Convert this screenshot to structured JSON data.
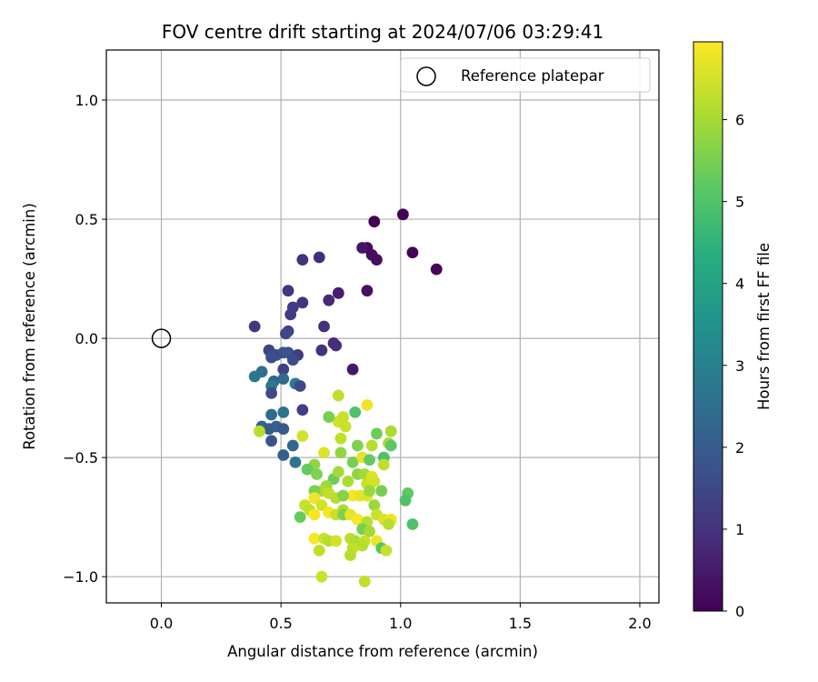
{
  "chart_data": {
    "type": "scatter",
    "title": "FOV centre drift starting at 2024/07/06 03:29:41",
    "xlabel": "Angular distance from reference (arcmin)",
    "ylabel": "Rotation from reference (arcmin)",
    "xlim": [
      -0.23,
      2.08
    ],
    "ylim": [
      -1.11,
      1.21
    ],
    "xticks": [
      0.0,
      0.5,
      1.0,
      1.5,
      2.0
    ],
    "xtick_labels": [
      "0.0",
      "0.5",
      "1.0",
      "1.5",
      "2.0"
    ],
    "yticks": [
      -1.0,
      -0.5,
      0.0,
      0.5,
      1.0
    ],
    "ytick_labels": [
      "−1.0",
      "−0.5",
      "0.0",
      "0.5",
      "1.0"
    ],
    "grid": true,
    "legend": {
      "placement": "top-right",
      "entries": [
        "Reference platepar"
      ]
    },
    "reference_point": {
      "name": "Reference platepar",
      "x": 0.0,
      "y": 0.0,
      "marker": "open-circle",
      "color": "#000000"
    },
    "colormap": "viridis",
    "colorbar": {
      "label": "Hours from first FF file",
      "min": 0,
      "max": 6.95,
      "ticks": [
        0,
        1,
        2,
        3,
        4,
        5,
        6
      ],
      "tick_labels": [
        "0",
        "1",
        "2",
        "3",
        "4",
        "5",
        "6"
      ]
    },
    "series": [
      {
        "points": [
          [
            0.89,
            0.49,
            0.0
          ],
          [
            1.01,
            0.52,
            0.02
          ],
          [
            1.05,
            0.36,
            0.05
          ],
          [
            1.15,
            0.29,
            0.1
          ],
          [
            0.86,
            0.38,
            0.15
          ],
          [
            0.88,
            0.35,
            0.2
          ],
          [
            0.9,
            0.33,
            0.25
          ],
          [
            0.86,
            0.2,
            0.3
          ],
          [
            0.84,
            0.38,
            0.4
          ],
          [
            0.74,
            0.19,
            0.5
          ],
          [
            0.8,
            -0.13,
            0.45
          ],
          [
            0.66,
            0.34,
            0.9
          ],
          [
            0.59,
            0.33,
            1.0
          ],
          [
            0.7,
            0.16,
            0.8
          ],
          [
            0.53,
            0.2,
            1.1
          ],
          [
            0.59,
            0.15,
            1.0
          ],
          [
            0.55,
            0.13,
            1.2
          ],
          [
            0.54,
            0.1,
            1.25
          ],
          [
            0.39,
            0.05,
            1.1
          ],
          [
            0.68,
            0.05,
            0.95
          ],
          [
            0.53,
            0.03,
            1.3
          ],
          [
            0.52,
            0.02,
            1.5
          ],
          [
            0.72,
            -0.02,
            0.85
          ],
          [
            0.73,
            -0.03,
            0.9
          ],
          [
            0.67,
            -0.05,
            1.0
          ],
          [
            0.45,
            -0.05,
            1.4
          ],
          [
            0.48,
            -0.07,
            1.6
          ],
          [
            0.51,
            -0.06,
            1.7
          ],
          [
            0.53,
            -0.06,
            1.8
          ],
          [
            0.57,
            -0.07,
            1.2
          ],
          [
            0.46,
            -0.08,
            1.7
          ],
          [
            0.51,
            -0.13,
            1.35
          ],
          [
            0.55,
            -0.09,
            1.6
          ],
          [
            0.47,
            -0.18,
            2.3
          ],
          [
            0.42,
            -0.14,
            2.6
          ],
          [
            0.39,
            -0.16,
            2.7
          ],
          [
            0.46,
            -0.2,
            2.8
          ],
          [
            0.51,
            -0.17,
            2.4
          ],
          [
            0.56,
            -0.19,
            2.9
          ],
          [
            0.58,
            -0.2,
            1.5
          ],
          [
            0.46,
            -0.23,
            1.5
          ],
          [
            0.59,
            -0.3,
            1.3
          ],
          [
            0.51,
            -0.31,
            2.6
          ],
          [
            0.46,
            -0.32,
            2.4
          ],
          [
            0.42,
            -0.37,
            2.2
          ],
          [
            0.45,
            -0.38,
            2.0
          ],
          [
            0.48,
            -0.37,
            2.1
          ],
          [
            0.51,
            -0.38,
            1.95
          ],
          [
            0.46,
            -0.43,
            1.8
          ],
          [
            0.51,
            -0.49,
            2.1
          ],
          [
            0.55,
            -0.45,
            2.3
          ],
          [
            0.56,
            -0.52,
            2.7
          ],
          [
            0.41,
            -0.39,
            6.2
          ],
          [
            0.59,
            -0.41,
            6.5
          ],
          [
            0.74,
            -0.24,
            6.3
          ],
          [
            0.81,
            -0.31,
            5.0
          ],
          [
            0.86,
            -0.28,
            6.8
          ],
          [
            0.74,
            -0.35,
            6.5
          ],
          [
            0.76,
            -0.33,
            6.4
          ],
          [
            0.77,
            -0.37,
            6.4
          ],
          [
            0.7,
            -0.33,
            5.5
          ],
          [
            0.75,
            -0.42,
            6.3
          ],
          [
            0.82,
            -0.45,
            5.6
          ],
          [
            0.88,
            -0.45,
            6.2
          ],
          [
            0.9,
            -0.4,
            5.4
          ],
          [
            0.96,
            -0.39,
            6.1
          ],
          [
            0.95,
            -0.44,
            6.0
          ],
          [
            0.96,
            -0.45,
            5.2
          ],
          [
            0.68,
            -0.48,
            6.6
          ],
          [
            0.75,
            -0.48,
            5.8
          ],
          [
            0.8,
            -0.52,
            5.5
          ],
          [
            0.84,
            -0.5,
            6.7
          ],
          [
            0.87,
            -0.51,
            5.3
          ],
          [
            0.93,
            -0.5,
            5.0
          ],
          [
            0.93,
            -0.53,
            6.3
          ],
          [
            0.64,
            -0.53,
            5.8
          ],
          [
            0.61,
            -0.55,
            5.3
          ],
          [
            0.65,
            -0.57,
            5.6
          ],
          [
            0.72,
            -0.59,
            5.4
          ],
          [
            0.74,
            -0.56,
            6.0
          ],
          [
            0.78,
            -0.6,
            6.1
          ],
          [
            0.82,
            -0.57,
            5.8
          ],
          [
            0.85,
            -0.57,
            6.0
          ],
          [
            0.86,
            -0.61,
            6.4
          ],
          [
            0.88,
            -0.58,
            6.6
          ],
          [
            0.89,
            -0.6,
            6.5
          ],
          [
            0.8,
            -0.66,
            6.9
          ],
          [
            0.69,
            -0.62,
            5.9
          ],
          [
            0.67,
            -0.64,
            6.1
          ],
          [
            0.64,
            -0.64,
            5.6
          ],
          [
            0.64,
            -0.67,
            6.8
          ],
          [
            0.7,
            -0.65,
            6.3
          ],
          [
            0.73,
            -0.67,
            6.2
          ],
          [
            0.76,
            -0.66,
            5.7
          ],
          [
            0.83,
            -0.66,
            6.7
          ],
          [
            0.86,
            -0.66,
            6.6
          ],
          [
            0.87,
            -0.64,
            5.9
          ],
          [
            0.92,
            -0.64,
            5.5
          ],
          [
            1.03,
            -0.65,
            5.2
          ],
          [
            1.02,
            -0.68,
            5.0
          ],
          [
            0.6,
            -0.7,
            6.4
          ],
          [
            0.62,
            -0.72,
            6.3
          ],
          [
            0.67,
            -0.7,
            6.5
          ],
          [
            0.7,
            -0.73,
            6.9
          ],
          [
            0.73,
            -0.74,
            6.4
          ],
          [
            0.76,
            -0.72,
            6.1
          ],
          [
            0.76,
            -0.74,
            5.6
          ],
          [
            0.79,
            -0.74,
            6.7
          ],
          [
            0.82,
            -0.76,
            6.9
          ],
          [
            0.86,
            -0.77,
            6.2
          ],
          [
            0.89,
            -0.7,
            5.9
          ],
          [
            0.9,
            -0.74,
            6.4
          ],
          [
            0.93,
            -0.76,
            6.6
          ],
          [
            0.96,
            -0.76,
            6.8
          ],
          [
            0.95,
            -0.78,
            6.2
          ],
          [
            0.58,
            -0.75,
            5.3
          ],
          [
            0.64,
            -0.74,
            6.9
          ],
          [
            0.84,
            -0.8,
            5.5
          ],
          [
            0.87,
            -0.81,
            6.0
          ],
          [
            0.79,
            -0.84,
            6.3
          ],
          [
            0.81,
            -0.85,
            6.1
          ],
          [
            0.85,
            -0.85,
            6.4
          ],
          [
            0.84,
            -0.87,
            6.2
          ],
          [
            0.9,
            -0.85,
            6.8
          ],
          [
            0.92,
            -0.88,
            5.1
          ],
          [
            0.94,
            -0.89,
            6.4
          ],
          [
            0.64,
            -0.84,
            6.9
          ],
          [
            0.68,
            -0.84,
            6.4
          ],
          [
            0.7,
            -0.85,
            6.2
          ],
          [
            0.73,
            -0.85,
            6.5
          ],
          [
            0.8,
            -0.88,
            6.3
          ],
          [
            0.79,
            -0.91,
            6.2
          ],
          [
            0.66,
            -0.89,
            6.3
          ],
          [
            1.05,
            -0.78,
            5.0
          ],
          [
            0.67,
            -1.0,
            6.4
          ],
          [
            0.85,
            -1.02,
            6.3
          ]
        ]
      }
    ]
  }
}
